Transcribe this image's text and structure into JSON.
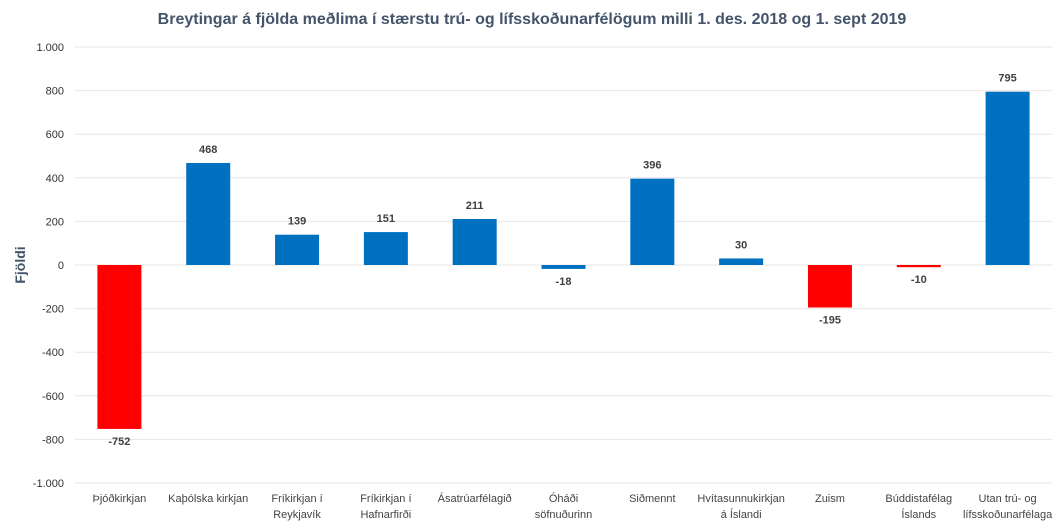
{
  "chart_data": {
    "type": "bar",
    "title": "Breytingar á fjölda meðlima í stærstu trú- og lífsskoðunarfélögum milli 1. des. 2018 og 1. sept 2019",
    "xlabel": "",
    "ylabel": "Fjöldi",
    "ylim": [
      -1000,
      1000
    ],
    "yticks": [
      1000,
      800,
      600,
      400,
      200,
      0,
      -200,
      -400,
      -600,
      -800,
      -1000
    ],
    "ytick_labels": [
      "1.000",
      "800",
      "600",
      "400",
      "200",
      "0",
      "-200",
      "-400",
      "-600",
      "-800",
      "-1.000"
    ],
    "grid": true,
    "categories": [
      [
        "Þjóðkirkjan"
      ],
      [
        "Kaþólska kirkjan"
      ],
      [
        "Fríkirkjan í",
        "Reykjavík"
      ],
      [
        "Fríkirkjan í",
        "Hafnarfirði"
      ],
      [
        "Ásatrúarfélagið"
      ],
      [
        "Óháði",
        "söfnuðurinn"
      ],
      [
        "Siðmennt"
      ],
      [
        "Hvítasunnukirkjan",
        "á Íslandi"
      ],
      [
        "Zuism"
      ],
      [
        "Búddistafélag",
        "Íslands"
      ],
      [
        "Utan trú- og",
        "lífsskoðunarfélaga"
      ]
    ],
    "values": [
      -752,
      468,
      139,
      151,
      211,
      -18,
      396,
      30,
      -195,
      -10,
      795
    ],
    "data_labels": [
      "-752",
      "468",
      "139",
      "151",
      "211",
      "-18",
      "396",
      "30",
      "-195",
      "-10",
      "795"
    ],
    "bar_colors": [
      "#ff0000",
      "#0070c0",
      "#0070c0",
      "#0070c0",
      "#0070c0",
      "#0070c0",
      "#0070c0",
      "#0070c0",
      "#ff0000",
      "#ff0000",
      "#0070c0"
    ]
  }
}
